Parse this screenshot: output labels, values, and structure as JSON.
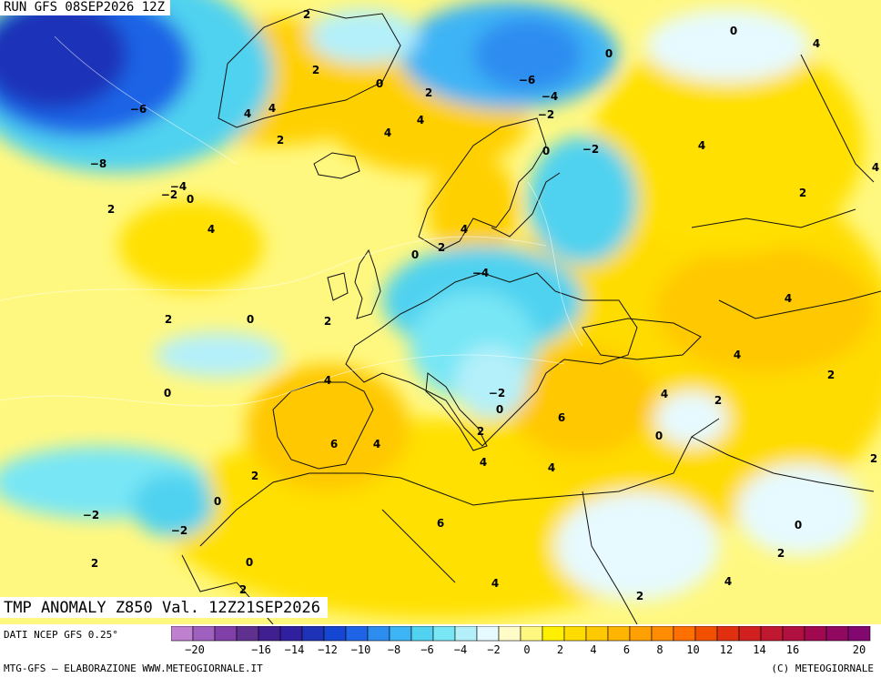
{
  "header": {
    "run_title": "RUN GFS 08SEP2026 12Z",
    "map_title": "TMP ANOMALY Z850 Val. 12Z21SEP2026"
  },
  "footer": {
    "data_source": "DATI NCEP GFS 0.25°",
    "credit_left": "MTG-GFS — ELABORAZIONE WWW.METEOGIORNALE.IT",
    "credit_right": "(C) METEOGIORNALE"
  },
  "legend": {
    "ticks": [
      "−20",
      "−18",
      "−16",
      "−14",
      "−12",
      "−10",
      "−8",
      "−6",
      "−4",
      "−2",
      "0",
      "2",
      "4",
      "6",
      "8",
      "10",
      "12",
      "14",
      "16",
      "18",
      "20"
    ],
    "tick_labels_shown": [
      "−20",
      "−16",
      "−14",
      "−12",
      "−10",
      "−8",
      "−6",
      "−4",
      "−2",
      "0",
      "2",
      "4",
      "6",
      "8",
      "10",
      "12",
      "14",
      "16",
      "20"
    ],
    "colors": [
      "#c080d0",
      "#a060c0",
      "#8040a8",
      "#603090",
      "#402090",
      "#3020a0",
      "#1e32b8",
      "#1446d2",
      "#1e64e6",
      "#2d8cf0",
      "#3cb4f5",
      "#50d2f0",
      "#78e6f5",
      "#b4f0fa",
      "#e6faff",
      "#fffcc8",
      "#fff880",
      "#fff000",
      "#ffdc00",
      "#ffc800",
      "#ffb400",
      "#ffa000",
      "#ff8c00",
      "#ff7000",
      "#f05000",
      "#e03010",
      "#d02020",
      "#c01830",
      "#b01040",
      "#a00850",
      "#900860",
      "#800870"
    ]
  },
  "anomaly_labels": [
    {
      "v": "2"
    },
    {
      "v": "−6"
    },
    {
      "v": "−8"
    },
    {
      "v": "−4"
    },
    {
      "v": "−2"
    },
    {
      "v": "0"
    },
    {
      "v": "2"
    },
    {
      "v": "4"
    },
    {
      "v": "4"
    },
    {
      "v": "4"
    },
    {
      "v": "2"
    },
    {
      "v": "2"
    },
    {
      "v": "0"
    },
    {
      "v": "2"
    },
    {
      "v": "4"
    },
    {
      "v": "4"
    },
    {
      "v": "−6"
    },
    {
      "v": "−4"
    },
    {
      "v": "−2"
    },
    {
      "v": "0"
    },
    {
      "v": "−2"
    },
    {
      "v": "0"
    },
    {
      "v": "4"
    },
    {
      "v": "0"
    },
    {
      "v": "4"
    },
    {
      "v": "2"
    },
    {
      "v": "4"
    },
    {
      "v": "2"
    },
    {
      "v": "0"
    },
    {
      "v": "−4"
    },
    {
      "v": "2"
    },
    {
      "v": "0"
    },
    {
      "v": "2"
    },
    {
      "v": "4"
    },
    {
      "v": "4"
    },
    {
      "v": "2"
    },
    {
      "v": "0"
    },
    {
      "v": "−2"
    },
    {
      "v": "0"
    },
    {
      "v": "4"
    },
    {
      "v": "6"
    },
    {
      "v": "4"
    },
    {
      "v": "2"
    },
    {
      "v": "2"
    },
    {
      "v": "4"
    },
    {
      "v": "6"
    },
    {
      "v": "4"
    },
    {
      "v": "0"
    },
    {
      "v": "2"
    },
    {
      "v": "−2"
    },
    {
      "v": "0"
    },
    {
      "v": "−2"
    },
    {
      "v": "2"
    },
    {
      "v": "0"
    },
    {
      "v": "6"
    },
    {
      "v": "2"
    },
    {
      "v": "4"
    },
    {
      "v": "2"
    },
    {
      "v": "0"
    },
    {
      "v": "2"
    },
    {
      "v": "4"
    },
    {
      "v": "4"
    },
    {
      "v": "2"
    },
    {
      "v": "4"
    }
  ]
}
